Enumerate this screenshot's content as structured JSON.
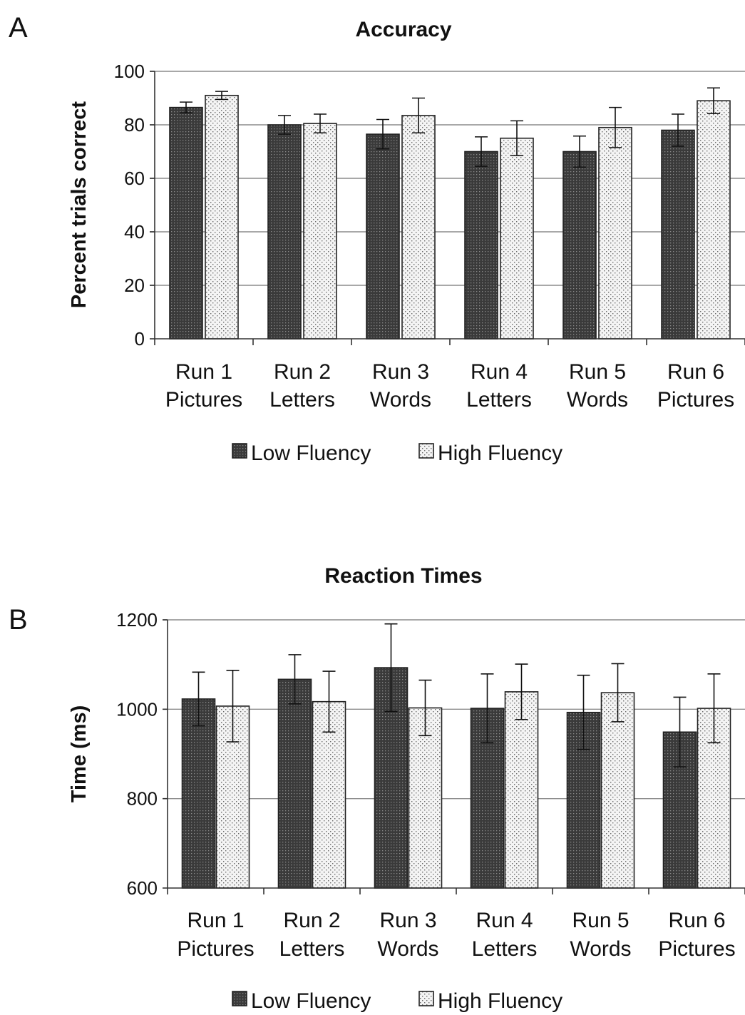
{
  "colors": {
    "low": "#3a3a3a",
    "high": "#ebebeb",
    "grid": "#8c8c8c"
  },
  "chart_data": [
    {
      "panel": "A",
      "type": "bar",
      "title": "Accuracy",
      "ylabel": "Percent trials correct",
      "xlabel": "",
      "ylim": [
        0,
        100
      ],
      "yticks": [
        "0",
        "20",
        "40",
        "60",
        "80",
        "100"
      ],
      "grid": true,
      "legend_position": "bottom",
      "categories": [
        [
          "Run 1",
          "Pictures"
        ],
        [
          "Run 2",
          "Letters"
        ],
        [
          "Run 3",
          "Words"
        ],
        [
          "Run 4",
          "Letters"
        ],
        [
          "Run 5",
          "Words"
        ],
        [
          "Run 6",
          "Pictures"
        ]
      ],
      "series": [
        {
          "name": "Low Fluency",
          "values": [
            86.5,
            80,
            76.5,
            70,
            70,
            78
          ],
          "errors": [
            2,
            3.5,
            5.5,
            5.5,
            5.8,
            6
          ]
        },
        {
          "name": "High Fluency",
          "values": [
            91,
            80.5,
            83.5,
            75,
            79,
            89
          ],
          "errors": [
            1.5,
            3.5,
            6.5,
            6.5,
            7.5,
            4.8
          ]
        }
      ]
    },
    {
      "panel": "B",
      "type": "bar",
      "title": "Reaction Times",
      "ylabel": "Time (ms)",
      "xlabel": "",
      "ylim": [
        600,
        1200
      ],
      "yticks": [
        "600",
        "800",
        "1000",
        "1200"
      ],
      "grid": true,
      "legend_position": "bottom",
      "categories": [
        [
          "Run 1",
          "Pictures"
        ],
        [
          "Run 2",
          "Letters"
        ],
        [
          "Run 3",
          "Words"
        ],
        [
          "Run 4",
          "Letters"
        ],
        [
          "Run 5",
          "Words"
        ],
        [
          "Run 6",
          "Pictures"
        ]
      ],
      "series": [
        {
          "name": "Low Fluency",
          "values": [
            1023,
            1067,
            1093,
            1002,
            993,
            949
          ],
          "errors": [
            60,
            55,
            98,
            77,
            83,
            78
          ]
        },
        {
          "name": "High Fluency",
          "values": [
            1007,
            1017,
            1003,
            1039,
            1037,
            1002
          ],
          "errors": [
            80,
            68,
            62,
            62,
            65,
            77
          ]
        }
      ]
    }
  ]
}
